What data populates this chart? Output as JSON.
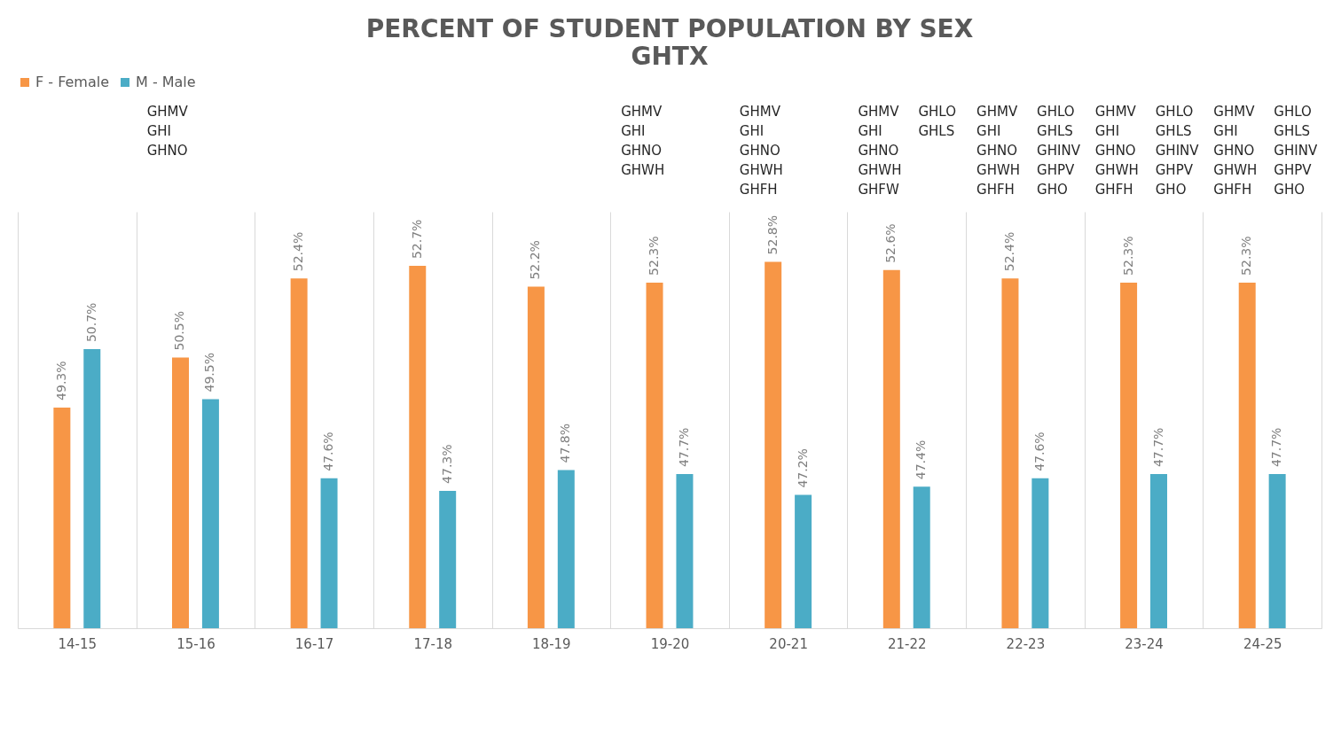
{
  "chart_data": {
    "type": "bar",
    "title": "PERCENT OF STUDENT POPULATION BY SEX",
    "subtitle": "GHTX",
    "categories": [
      "14-15",
      "15-16",
      "16-17",
      "17-18",
      "18-19",
      "19-20",
      "20-21",
      "21-22",
      "22-23",
      "23-24",
      "24-25"
    ],
    "series": [
      {
        "name": "F - Female",
        "color": "#f79646",
        "values": [
          49.3,
          50.5,
          52.4,
          52.7,
          52.2,
          52.3,
          52.8,
          52.6,
          52.4,
          52.3,
          52.3
        ],
        "value_labels": [
          "49.3%",
          "50.5%",
          "52.4%",
          "52.7%",
          "52.2%",
          "52.3%",
          "52.8%",
          "52.6%",
          "52.4%",
          "52.3%",
          "52.3%"
        ]
      },
      {
        "name": "M - Male",
        "color": "#4bacc6",
        "values": [
          50.7,
          49.5,
          47.6,
          47.3,
          47.8,
          47.7,
          47.2,
          47.4,
          47.6,
          47.7,
          47.7
        ],
        "value_labels": [
          "50.7%",
          "49.5%",
          "47.6%",
          "47.3%",
          "47.8%",
          "47.7%",
          "47.2%",
          "47.4%",
          "47.6%",
          "47.7%",
          "47.7%"
        ]
      }
    ],
    "ylim": [
      44,
      54
    ],
    "grid": "x",
    "legend": "top",
    "annotations": [
      "GHMV\nGHI\nGHNO",
      "GHMV\nGHI\nGHNO\nGHWH",
      "GHMV\nGHI\nGHNO\nGHWH\nGHFH",
      "GHMV\nGHI\nGHNO\nGHWH\nGHFW",
      "GHLO\nGHLS",
      "GHMV\nGHI\nGHNO\nGHWH\nGHFH",
      "GHLO\nGHLS\nGHINV\nGHPV\nGHO",
      "GHMV\nGHI\nGHNO\nGHWH\nGHFH",
      "GHLO\nGHLS\nGHINV\nGHPV\nGHO",
      "GHMV\nGHI\nGHNO\nGHWH\nGHFH",
      "GHLO\nGHLS\nGHINV\nGHPV\nGHO"
    ]
  }
}
